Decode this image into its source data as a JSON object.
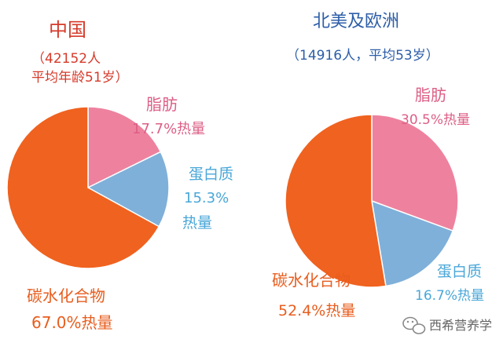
{
  "chart_data": [
    {
      "type": "pie",
      "title": "中国",
      "subtitle_line1": "（42152人",
      "subtitle_line2": "平均年龄51岁）",
      "slices": [
        {
          "name": "脂肪",
          "value": 17.7,
          "label_line1": "脂肪",
          "label_line2": "17.7%热量",
          "color": "#ee829e"
        },
        {
          "name": "蛋白质",
          "value": 15.3,
          "label_line1": "蛋白质",
          "label_line2": "15.3%",
          "label_line3": "热量",
          "color": "#7fb0d9"
        },
        {
          "name": "碳水化合物",
          "value": 67.0,
          "label_line1": "碳水化合物",
          "label_line2": "67.0%热量",
          "color": "#f0621f"
        }
      ]
    },
    {
      "type": "pie",
      "title": "北美及欧洲",
      "subtitle_line1": "（14916人，平均53岁）",
      "slices": [
        {
          "name": "脂肪",
          "value": 30.5,
          "label_line1": "脂肪",
          "label_line2": "30.5%热量",
          "color": "#ee829e"
        },
        {
          "name": "蛋白质",
          "value": 16.7,
          "label_line1": "蛋白质",
          "label_line2": "16.7%热量",
          "color": "#7fb0d9"
        },
        {
          "name": "碳水化合物",
          "value": 52.4,
          "label_line1": "碳水化合物",
          "label_line2": "52.4%热量",
          "color": "#f0621f"
        }
      ]
    }
  ],
  "watermark": {
    "text": "西希营养学",
    "icon": "wechat-icon"
  }
}
